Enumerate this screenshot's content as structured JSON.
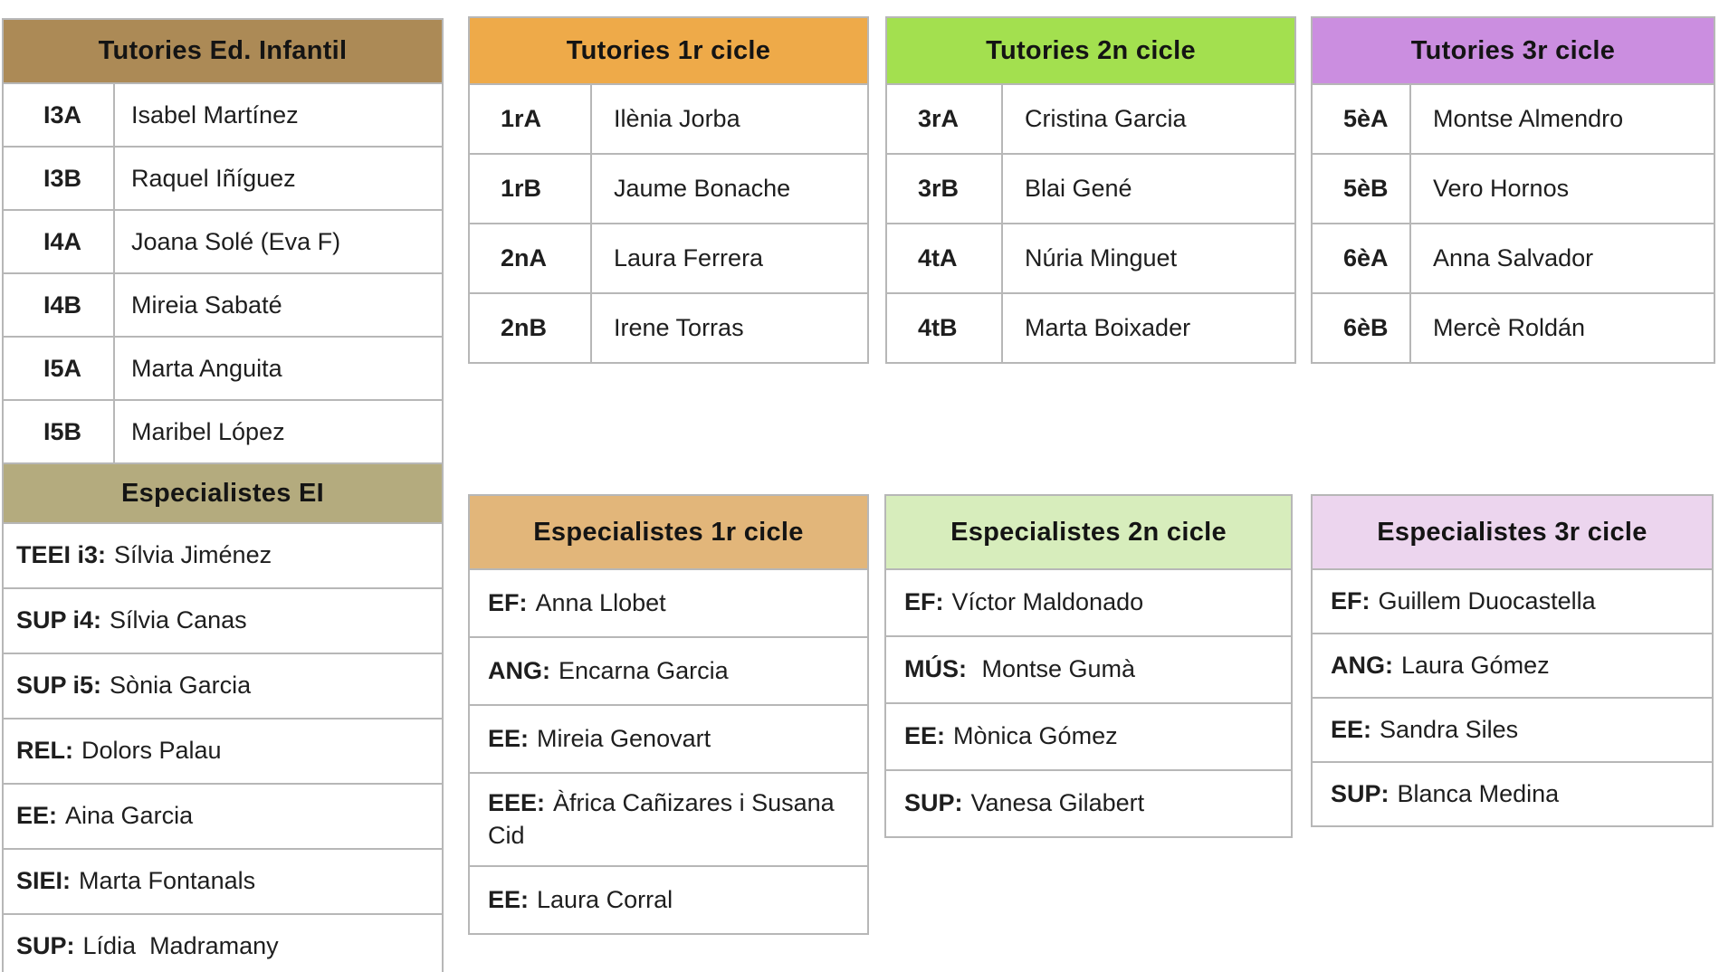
{
  "page": {
    "background": "#ffffff",
    "border_color": "#b7b7b7",
    "text_color": "#1e1e1e"
  },
  "tables": {
    "tutories_infantil": {
      "title": "Tutories Ed. Infantil",
      "header_bg": "#ac8a56",
      "rows": [
        {
          "code": "I3A",
          "name": "Isabel Martínez"
        },
        {
          "code": "I3B",
          "name": "Raquel Iñíguez"
        },
        {
          "code": "I4A",
          "name": "Joana Solé (Eva F)"
        },
        {
          "code": "I4B",
          "name": "Mireia Sabaté"
        },
        {
          "code": "I5A",
          "name": "Marta Anguita"
        },
        {
          "code": "I5B",
          "name": "Maribel López"
        }
      ]
    },
    "especialistes_ei": {
      "title": "Especialistes EI",
      "header_bg": "#b4ab7e",
      "rows": [
        {
          "label": "TEEI i3:",
          "name": "Sílvia Jiménez"
        },
        {
          "label": "SUP i4:",
          "name": "Sílvia Canas"
        },
        {
          "label": "SUP i5:",
          "name": "Sònia Garcia"
        },
        {
          "label": "REL:",
          "name": "Dolors Palau"
        },
        {
          "label": "EE:",
          "name": "Aina Garcia"
        },
        {
          "label": "SIEI:",
          "name": "Marta Fontanals"
        },
        {
          "label": "SUP:",
          "name": "Lídia  Madramany"
        }
      ]
    },
    "tutories_1r": {
      "title": "Tutories 1r cicle",
      "header_bg": "#eeaa49",
      "rows": [
        {
          "code": "1rA",
          "name": "Ilènia Jorba"
        },
        {
          "code": "1rB",
          "name": "Jaume Bonache"
        },
        {
          "code": "2nA",
          "name": "Laura Ferrera"
        },
        {
          "code": "2nB",
          "name": "Irene Torras"
        }
      ]
    },
    "tutories_2n": {
      "title": "Tutories 2n cicle",
      "header_bg": "#a3e04f",
      "rows": [
        {
          "code": "3rA",
          "name": "Cristina Garcia"
        },
        {
          "code": "3rB",
          "name": "Blai Gené"
        },
        {
          "code": "4tA",
          "name": "Núria Minguet"
        },
        {
          "code": "4tB",
          "name": "Marta Boixader"
        }
      ]
    },
    "tutories_3r": {
      "title": "Tutories 3r cicle",
      "header_bg": "#cb8ee0",
      "rows": [
        {
          "code": "5èA",
          "name": "Montse Almendro"
        },
        {
          "code": "5èB",
          "name": "Vero Hornos"
        },
        {
          "code": "6èA",
          "name": "Anna Salvador"
        },
        {
          "code": "6èB",
          "name": "Mercè Roldán"
        }
      ]
    },
    "especialistes_1r": {
      "title": "Especialistes 1r cicle",
      "header_bg": "#e2b67a",
      "rows": [
        {
          "label": "EF:",
          "name": "Anna Llobet"
        },
        {
          "label": "ANG:",
          "name": "Encarna Garcia"
        },
        {
          "label": "EE:",
          "name": "Mireia Genovart"
        },
        {
          "label": "EEE:",
          "name": "Àfrica Cañizares i Susana Cid"
        },
        {
          "label": "EE:",
          "name": "Laura Corral"
        }
      ]
    },
    "especialistes_2n": {
      "title": "Especialistes 2n cicle",
      "header_bg": "#d7edbc",
      "rows": [
        {
          "label": "EF:",
          "name": "Víctor Maldonado"
        },
        {
          "label": "MÚS:",
          "name": " Montse Gumà"
        },
        {
          "label": "EE:",
          "name": "Mònica Gómez"
        },
        {
          "label": "SUP:",
          "name": "Vanesa Gilabert"
        }
      ]
    },
    "especialistes_3r": {
      "title": "Especialistes 3r cicle",
      "header_bg": "#ecd5ee",
      "rows": [
        {
          "label": "EF:",
          "name": "Guillem Duocastella"
        },
        {
          "label": "ANG:",
          "name": "Laura Gómez"
        },
        {
          "label": "EE:",
          "name": "Sandra Siles"
        },
        {
          "label": "SUP:",
          "name": "Blanca Medina"
        }
      ]
    }
  }
}
